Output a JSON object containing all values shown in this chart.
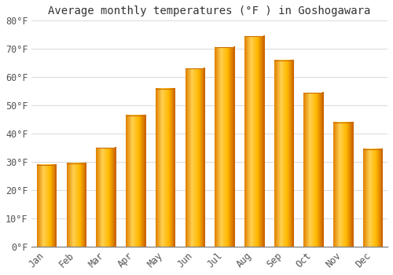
{
  "title": "Average monthly temperatures (°F ) in Goshogawara",
  "months": [
    "Jan",
    "Feb",
    "Mar",
    "Apr",
    "May",
    "Jun",
    "Jul",
    "Aug",
    "Sep",
    "Oct",
    "Nov",
    "Dec"
  ],
  "values": [
    29,
    29.5,
    35,
    46.5,
    56,
    63,
    70.5,
    74.5,
    66,
    54.5,
    44,
    34.5
  ],
  "bar_color_left": "#FFB300",
  "bar_color_center": "#FFD040",
  "bar_color_right": "#E07800",
  "background_color": "#FFFFFF",
  "ylim": [
    0,
    80
  ],
  "yticks": [
    0,
    10,
    20,
    30,
    40,
    50,
    60,
    70,
    80
  ],
  "ytick_labels": [
    "0°F",
    "10°F",
    "20°F",
    "30°F",
    "40°F",
    "50°F",
    "60°F",
    "70°F",
    "80°F"
  ],
  "grid_color": "#DDDDDD",
  "title_fontsize": 10,
  "tick_fontsize": 8.5,
  "font_family": "monospace"
}
